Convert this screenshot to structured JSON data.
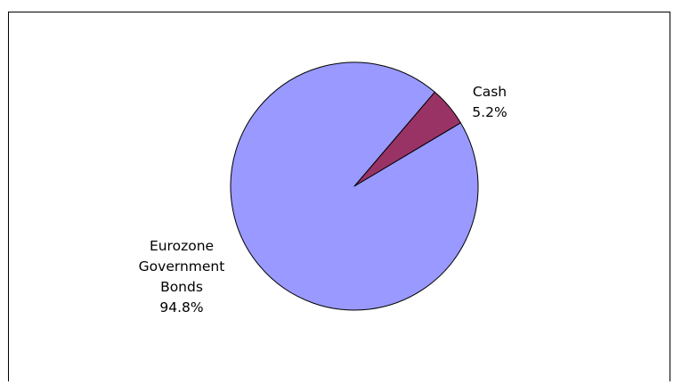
{
  "chart_data": {
    "type": "pie",
    "title": "",
    "slices": [
      {
        "label_lines": [
          "Cash",
          "5.2%"
        ],
        "value": 5.2,
        "color": "#993366"
      },
      {
        "label_lines": [
          "Eurozone",
          "Government",
          "Bonds",
          "94.8%"
        ],
        "value": 94.8,
        "color": "#9999FF"
      }
    ],
    "start_angle_deg": 49.5,
    "direction": "clockwise",
    "slice_border_color": "#000000",
    "legend": "none"
  }
}
